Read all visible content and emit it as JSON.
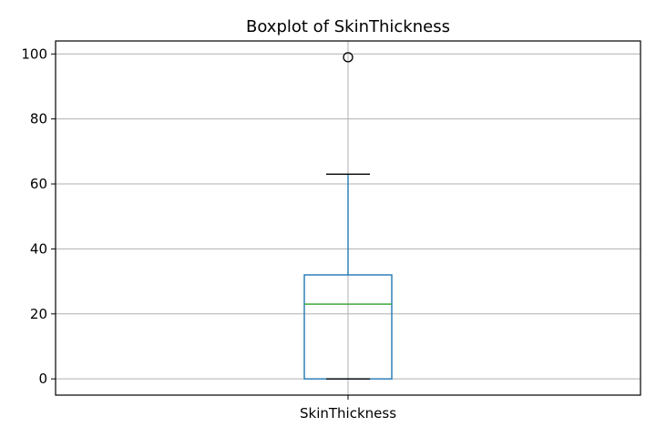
{
  "chart_data": {
    "type": "box",
    "title": "Boxplot of SkinThickness",
    "xlabel": "",
    "ylabel": "",
    "categories": [
      "SkinThickness"
    ],
    "ylim": [
      -5,
      104
    ],
    "yticks": [
      0,
      20,
      40,
      60,
      80,
      100
    ],
    "grid": true,
    "box": {
      "name": "SkinThickness",
      "min": 0,
      "q1": 0,
      "median": 23,
      "q3": 32,
      "whisker_low": 0,
      "whisker_high": 63,
      "outliers": [
        99
      ]
    },
    "colors": {
      "box": "#1f77b4",
      "median": "#2ca02c",
      "whisker": "#1f77b4",
      "cap": "#000000",
      "grid": "#b0b0b0",
      "flier": "#000000"
    }
  }
}
